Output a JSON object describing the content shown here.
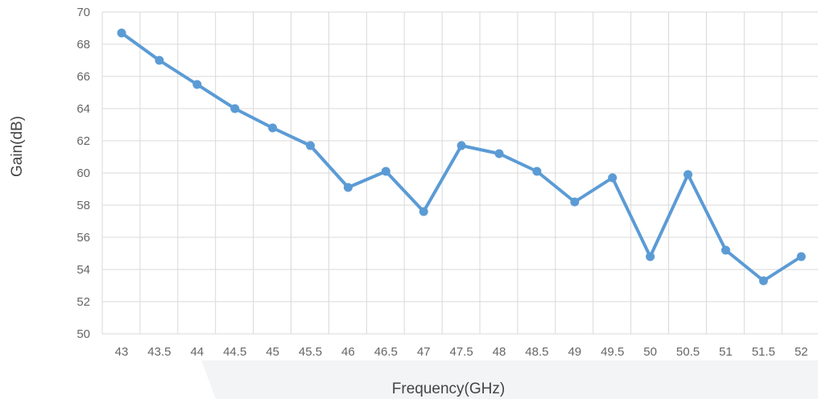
{
  "chart_data": {
    "type": "line",
    "xlabel": "Frequency(GHz)",
    "ylabel": "Gain(dB)",
    "x": [
      43,
      43.5,
      44,
      44.5,
      45,
      45.5,
      46,
      46.5,
      47,
      47.5,
      48,
      48.5,
      49,
      49.5,
      50,
      50.5,
      51,
      51.5,
      52
    ],
    "x_tick_labels": [
      "43",
      "43.5",
      "44",
      "44.5",
      "45",
      "45.5",
      "46",
      "46.5",
      "47",
      "47.5",
      "48",
      "48.5",
      "49",
      "49.5",
      "50",
      "50.5",
      "51",
      "51.5",
      "52"
    ],
    "y_ticks": [
      50,
      52,
      54,
      56,
      58,
      60,
      62,
      64,
      66,
      68,
      70
    ],
    "y_tick_labels": [
      "50",
      "52",
      "54",
      "56",
      "58",
      "60",
      "62",
      "64",
      "66",
      "68",
      "70"
    ],
    "ylim": [
      50,
      70
    ],
    "grid": true,
    "legend": "none",
    "series": [
      {
        "values": [
          68.7,
          67.0,
          65.5,
          64.0,
          62.8,
          61.7,
          59.1,
          60.1,
          57.6,
          61.7,
          61.2,
          60.1,
          58.2,
          59.7,
          54.8,
          59.9,
          55.2,
          53.3,
          54.8
        ],
        "color": "#5b9bd5"
      }
    ]
  }
}
